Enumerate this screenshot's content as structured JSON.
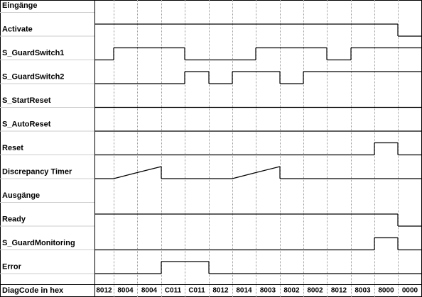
{
  "rows": [
    {
      "label": "Eingänge"
    },
    {
      "label": "Activate",
      "levels": [
        1,
        1,
        1,
        1,
        1,
        1,
        1,
        1,
        1,
        1,
        1,
        1,
        1,
        0
      ]
    },
    {
      "label": "S_GuardSwitch1",
      "levels": [
        0,
        1,
        1,
        1,
        0,
        0,
        0,
        1,
        1,
        1,
        0,
        1,
        1,
        1
      ]
    },
    {
      "label": "S_GuardSwitch2",
      "levels": [
        0,
        0,
        0,
        0,
        1,
        0,
        1,
        1,
        0,
        1,
        1,
        1,
        1,
        1
      ]
    },
    {
      "label": "S_StartReset",
      "levels": [
        0,
        0,
        0,
        0,
        0,
        0,
        0,
        0,
        0,
        0,
        0,
        0,
        0,
        0
      ]
    },
    {
      "label": "S_AutoReset",
      "levels": [
        0,
        0,
        0,
        0,
        0,
        0,
        0,
        0,
        0,
        0,
        0,
        0,
        0,
        0
      ]
    },
    {
      "label": "Reset",
      "levels": [
        0,
        0,
        0,
        0,
        0,
        0,
        0,
        0,
        0,
        0,
        0,
        0,
        1,
        0
      ]
    },
    {
      "label": "Discrepancy Timer",
      "segments": [
        [
          0,
          0
        ],
        [
          0,
          0.5
        ],
        [
          0.5,
          1
        ],
        [
          0,
          0
        ],
        [
          0,
          0
        ],
        [
          0,
          0
        ],
        [
          0,
          0.5
        ],
        [
          0.5,
          1
        ],
        [
          0,
          0
        ],
        [
          0,
          0
        ],
        [
          0,
          0
        ],
        [
          0,
          0
        ],
        [
          0,
          0
        ],
        [
          0,
          0
        ]
      ]
    },
    {
      "label": "Ausgänge"
    },
    {
      "label": "Ready",
      "levels": [
        1,
        1,
        1,
        1,
        1,
        1,
        1,
        1,
        1,
        1,
        1,
        1,
        1,
        0
      ]
    },
    {
      "label": "S_GuardMonitoring",
      "levels": [
        0,
        0,
        0,
        0,
        0,
        0,
        0,
        0,
        0,
        0,
        0,
        0,
        1,
        0
      ]
    },
    {
      "label": "Error",
      "levels": [
        0,
        0,
        0,
        1,
        1,
        0,
        0,
        0,
        0,
        0,
        0,
        0,
        0,
        0
      ]
    }
  ],
  "diag_label": "DiagCode in hex",
  "diag_codes": [
    "8012",
    "8004",
    "8004",
    "C011",
    "C011",
    "8012",
    "8014",
    "8003",
    "8002",
    "8002",
    "8012",
    "8003",
    "8000",
    "0000"
  ]
}
